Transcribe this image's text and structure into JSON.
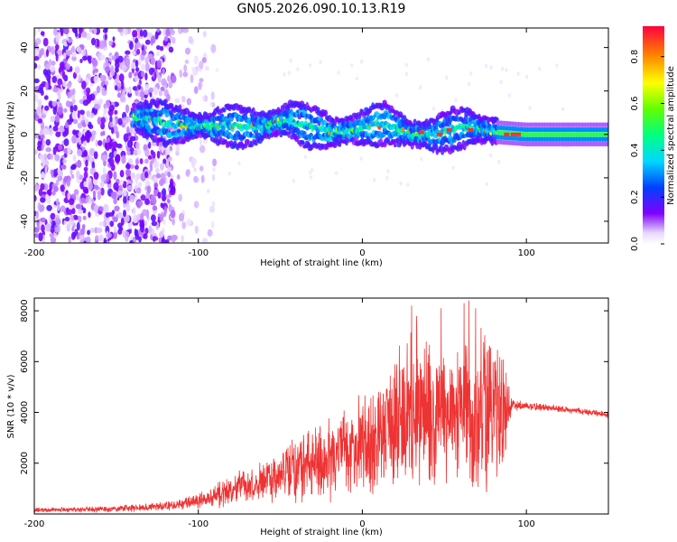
{
  "title": "GN05.2026.090.10.13.R19",
  "chart_data": [
    {
      "type": "heatmap",
      "name": "spectrogram",
      "xlabel": "Height of straight line (km)",
      "ylabel": "Frequency (Hz)",
      "xlim": [
        -200,
        150
      ],
      "ylim": [
        -50,
        49
      ],
      "x_ticks": [
        "-200",
        "-100",
        "0",
        "100"
      ],
      "x_tick_values": [
        -200,
        -100,
        0,
        100
      ],
      "y_ticks": [
        "-40",
        "-20",
        "0",
        "20",
        "40"
      ],
      "y_tick_values": [
        -40,
        -20,
        0,
        20,
        40
      ],
      "colorbar": {
        "label": "Normalized spectral amplitude",
        "range": [
          0,
          0.93
        ],
        "ticks": [
          "0.0",
          "0.2",
          "0.4",
          "0.6",
          "0.8"
        ],
        "tick_values": [
          0.0,
          0.2,
          0.4,
          0.6,
          0.8
        ]
      },
      "noise_region": {
        "x_range": [
          -200,
          -115
        ],
        "amplitude": 0.08,
        "outer_x": -90
      },
      "signal_band": {
        "x_range": [
          -140,
          150
        ],
        "center_freq_hz": 2,
        "halfwidth_hz": 6,
        "peak_amplitude": 0.93,
        "steady_from_km": 82
      },
      "ridge_center": [
        {
          "x": -140,
          "y": 8
        },
        {
          "x": -110,
          "y": 4
        },
        {
          "x": -85,
          "y": 4
        },
        {
          "x": -65,
          "y": 3
        },
        {
          "x": -45,
          "y": 7
        },
        {
          "x": -30,
          "y": 3
        },
        {
          "x": -15,
          "y": 1
        },
        {
          "x": 0,
          "y": 3
        },
        {
          "x": 15,
          "y": 5
        },
        {
          "x": 30,
          "y": 0
        },
        {
          "x": 45,
          "y": 0
        },
        {
          "x": 60,
          "y": 3
        },
        {
          "x": 70,
          "y": 3
        },
        {
          "x": 82,
          "y": 1
        },
        {
          "x": 100,
          "y": 0
        },
        {
          "x": 150,
          "y": 0
        }
      ]
    },
    {
      "type": "line",
      "name": "snr",
      "xlabel": "Height of straight line (km)",
      "ylabel": "SNR (10 * v/v)",
      "xlim": [
        -200,
        150
      ],
      "ylim": [
        0,
        8500
      ],
      "x_ticks": [
        "-200",
        "-100",
        "0",
        "100"
      ],
      "x_tick_values": [
        -200,
        -100,
        0,
        100
      ],
      "y_ticks": [
        "2000",
        "4000",
        "6000",
        "8000"
      ],
      "y_tick_values": [
        2000,
        4000,
        6000,
        8000
      ],
      "color": "#ee3333",
      "envelope": [
        {
          "x": -200,
          "mean": 150,
          "amp": 100
        },
        {
          "x": -150,
          "mean": 200,
          "amp": 150
        },
        {
          "x": -120,
          "mean": 300,
          "amp": 200
        },
        {
          "x": -100,
          "mean": 500,
          "amp": 350
        },
        {
          "x": -80,
          "mean": 900,
          "amp": 650
        },
        {
          "x": -60,
          "mean": 1300,
          "amp": 1000
        },
        {
          "x": -40,
          "mean": 1800,
          "amp": 1500
        },
        {
          "x": -20,
          "mean": 2200,
          "amp": 1800
        },
        {
          "x": 0,
          "mean": 2700,
          "amp": 2300
        },
        {
          "x": 10,
          "mean": 3000,
          "amp": 2500
        },
        {
          "x": 20,
          "mean": 3600,
          "amp": 3000
        },
        {
          "x": 30,
          "mean": 4000,
          "amp": 3600
        },
        {
          "x": 45,
          "mean": 4000,
          "amp": 3300
        },
        {
          "x": 55,
          "mean": 4000,
          "amp": 3200
        },
        {
          "x": 65,
          "mean": 4000,
          "amp": 3700
        },
        {
          "x": 75,
          "mean": 4100,
          "amp": 3500
        },
        {
          "x": 88,
          "mean": 4200,
          "amp": 2500
        },
        {
          "x": 91,
          "mean": 4300,
          "amp": 250
        },
        {
          "x": 120,
          "mean": 4150,
          "amp": 150
        },
        {
          "x": 150,
          "mean": 3900,
          "amp": 150
        }
      ],
      "peaks": [
        {
          "x": 30,
          "y": 8200
        },
        {
          "x": 33,
          "y": 7800
        },
        {
          "x": 48,
          "y": 8100
        },
        {
          "x": 62,
          "y": 8300
        },
        {
          "x": 65,
          "y": 8400
        },
        {
          "x": 69,
          "y": 8100
        }
      ]
    }
  ]
}
